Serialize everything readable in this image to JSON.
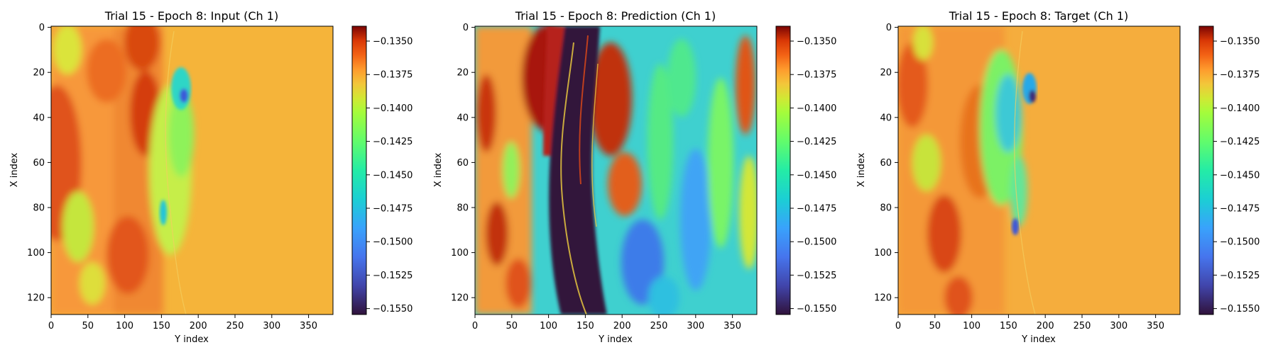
{
  "chart_data": [
    {
      "type": "heatmap",
      "title": "Trial 15 - Epoch 8: Input (Ch 1)",
      "xlabel": "Y index",
      "ylabel": "X index",
      "x_range": [
        0,
        383
      ],
      "y_range": [
        0,
        127
      ],
      "y_axis_inverted": true,
      "x_ticks": [
        "0",
        "50",
        "100",
        "150",
        "200",
        "250",
        "300",
        "350"
      ],
      "y_ticks": [
        "0",
        "20",
        "40",
        "60",
        "80",
        "100",
        "120"
      ],
      "colormap": "turbo",
      "color_range": [
        -0.1555,
        -0.134
      ],
      "colorbar_ticks": [
        "−0.1350",
        "−0.1375",
        "−0.1400",
        "−0.1425",
        "−0.1450",
        "−0.1475",
        "−0.1500",
        "−0.1525",
        "−0.1550"
      ]
    },
    {
      "type": "heatmap",
      "title": "Trial 15 - Epoch 8: Prediction (Ch 1)",
      "xlabel": "Y index",
      "ylabel": "X index",
      "x_range": [
        0,
        383
      ],
      "y_range": [
        0,
        127
      ],
      "y_axis_inverted": true,
      "x_ticks": [
        "0",
        "50",
        "100",
        "150",
        "200",
        "250",
        "300",
        "350"
      ],
      "y_ticks": [
        "0",
        "20",
        "40",
        "60",
        "80",
        "100",
        "120"
      ],
      "colormap": "turbo",
      "color_range": [
        -0.1555,
        -0.134
      ],
      "colorbar_ticks": [
        "−0.1350",
        "−0.1375",
        "−0.1400",
        "−0.1425",
        "−0.1450",
        "−0.1475",
        "−0.1500",
        "−0.1525",
        "−0.1550"
      ]
    },
    {
      "type": "heatmap",
      "title": "Trial 15 - Epoch 8: Target (Ch 1)",
      "xlabel": "Y index",
      "ylabel": "X index",
      "x_range": [
        0,
        383
      ],
      "y_range": [
        0,
        127
      ],
      "y_axis_inverted": true,
      "x_ticks": [
        "0",
        "50",
        "100",
        "150",
        "200",
        "250",
        "300",
        "350"
      ],
      "y_ticks": [
        "0",
        "20",
        "40",
        "60",
        "80",
        "100",
        "120"
      ],
      "colormap": "turbo",
      "color_range": [
        -0.1555,
        -0.134
      ],
      "colorbar_ticks": [
        "−0.1350",
        "−0.1375",
        "−0.1400",
        "−0.1425",
        "−0.1450",
        "−0.1475",
        "−0.1500",
        "−0.1525",
        "−0.1550"
      ]
    }
  ]
}
